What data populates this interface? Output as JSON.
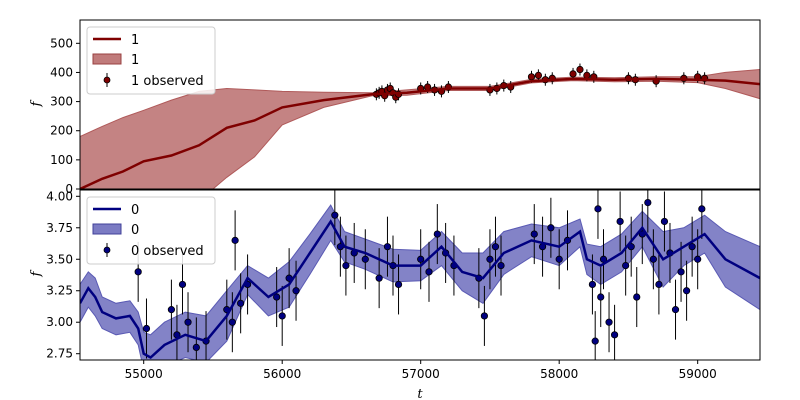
{
  "chart_data": {
    "type": "line",
    "xlabel": "t",
    "xlim": [
      54540,
      59450
    ],
    "xticks": [
      "55000",
      "56000",
      "57000",
      "58000",
      "59000"
    ],
    "panels": [
      {
        "id": "top",
        "ylabel": "f",
        "ylim": [
          0,
          580
        ],
        "yticks": [
          "0",
          "100",
          "200",
          "300",
          "400",
          "500"
        ],
        "line_color": "#7f0000",
        "band_color": "#b05a5a",
        "legend": {
          "line": "1",
          "band": "1",
          "points": "1 observed",
          "position": "upper-left"
        },
        "model": {
          "x": [
            54540,
            54700,
            54850,
            55000,
            55200,
            55400,
            55600,
            55800,
            56000,
            56300,
            56650,
            56900,
            57200,
            57500,
            57800,
            58100,
            58400,
            58700,
            59000,
            59200,
            59450
          ],
          "y": [
            0,
            35,
            60,
            95,
            115,
            150,
            210,
            235,
            280,
            305,
            325,
            330,
            345,
            345,
            370,
            378,
            375,
            378,
            375,
            372,
            360
          ],
          "upper": [
            180,
            215,
            245,
            270,
            305,
            335,
            345,
            340,
            335,
            332,
            330,
            340,
            352,
            352,
            376,
            384,
            382,
            385,
            385,
            400,
            410
          ],
          "lower": [
            -180,
            -150,
            -120,
            -80,
            -70,
            -40,
            40,
            110,
            220,
            280,
            320,
            322,
            338,
            338,
            364,
            372,
            368,
            370,
            365,
            345,
            310
          ]
        },
        "observed": {
          "x": [
            56680,
            56700,
            56720,
            56740,
            56760,
            56780,
            56800,
            56820,
            56840,
            57000,
            57050,
            57100,
            57150,
            57200,
            57500,
            57550,
            57600,
            57650,
            57800,
            57850,
            57900,
            57950,
            58100,
            58150,
            58200,
            58250,
            58500,
            58550,
            58700,
            58900,
            59000,
            59050
          ],
          "y": [
            325,
            330,
            335,
            320,
            340,
            345,
            330,
            315,
            325,
            345,
            350,
            340,
            335,
            350,
            340,
            345,
            355,
            350,
            385,
            390,
            375,
            380,
            395,
            410,
            390,
            385,
            380,
            375,
            370,
            380,
            385,
            380
          ]
        }
      },
      {
        "id": "bottom",
        "ylabel": "f",
        "ylim": [
          2.7,
          4.05
        ],
        "yticks": [
          "2.75",
          "3.00",
          "3.25",
          "3.50",
          "3.75",
          "4.00"
        ],
        "line_color": "#000080",
        "band_color": "#5a5ab4",
        "legend": {
          "line": "0",
          "band": "0",
          "points": "0 observed",
          "position": "upper-left"
        },
        "model": {
          "x": [
            54540,
            54600,
            54650,
            54700,
            54800,
            54900,
            54960,
            55000,
            55050,
            55150,
            55300,
            55450,
            55600,
            55750,
            55900,
            56050,
            56200,
            56350,
            56450,
            56600,
            56800,
            57000,
            57150,
            57300,
            57450,
            57600,
            57800,
            58000,
            58150,
            58200,
            58300,
            58450,
            58600,
            58750,
            58900,
            59050,
            59200,
            59450
          ],
          "y": [
            3.15,
            3.27,
            3.2,
            3.08,
            3.03,
            3.05,
            2.95,
            2.75,
            2.72,
            2.82,
            2.9,
            2.85,
            3.05,
            3.35,
            3.2,
            3.3,
            3.55,
            3.8,
            3.6,
            3.55,
            3.45,
            3.45,
            3.6,
            3.4,
            3.35,
            3.55,
            3.65,
            3.6,
            3.72,
            3.5,
            3.45,
            3.55,
            3.75,
            3.5,
            3.6,
            3.7,
            3.5,
            3.35
          ],
          "upper": [
            3.3,
            3.4,
            3.35,
            3.2,
            3.15,
            3.17,
            3.08,
            2.92,
            2.9,
            3.0,
            3.08,
            3.05,
            3.25,
            3.45,
            3.35,
            3.48,
            3.7,
            3.93,
            3.72,
            3.66,
            3.58,
            3.57,
            3.72,
            3.55,
            3.55,
            3.72,
            3.78,
            3.75,
            3.82,
            3.62,
            3.6,
            3.7,
            3.88,
            3.72,
            3.75,
            3.85,
            3.72,
            3.6
          ],
          "lower": [
            3.0,
            3.12,
            3.05,
            2.95,
            2.9,
            2.92,
            2.82,
            2.62,
            2.6,
            2.65,
            2.72,
            2.68,
            2.85,
            3.22,
            3.05,
            3.12,
            3.38,
            3.65,
            3.48,
            3.42,
            3.32,
            3.33,
            3.45,
            3.25,
            3.15,
            3.38,
            3.52,
            3.45,
            3.6,
            3.38,
            3.3,
            3.4,
            3.6,
            3.28,
            3.45,
            3.55,
            3.28,
            3.1
          ]
        },
        "observed": {
          "x": [
            54960,
            55020,
            55200,
            55240,
            55280,
            55320,
            55380,
            55450,
            55600,
            55640,
            55660,
            55700,
            55750,
            55960,
            56000,
            56050,
            56100,
            56380,
            56420,
            56460,
            56520,
            56600,
            56700,
            56760,
            56800,
            56840,
            57000,
            57060,
            57120,
            57180,
            57240,
            57420,
            57460,
            57500,
            57540,
            57580,
            57820,
            57880,
            57940,
            58000,
            58060,
            58240,
            58260,
            58280,
            58300,
            58320,
            58360,
            58400,
            58440,
            58480,
            58520,
            58560,
            58600,
            58640,
            58680,
            58720,
            58760,
            58800,
            58840,
            58880,
            58920,
            58960,
            59000,
            59030
          ],
          "y": [
            3.4,
            2.95,
            3.1,
            2.9,
            3.3,
            3.0,
            2.8,
            2.85,
            3.1,
            3.0,
            3.65,
            3.15,
            3.3,
            3.2,
            3.05,
            3.35,
            3.25,
            3.85,
            3.6,
            3.45,
            3.55,
            3.5,
            3.35,
            3.6,
            3.45,
            3.3,
            3.5,
            3.4,
            3.7,
            3.55,
            3.45,
            3.35,
            3.05,
            3.5,
            3.6,
            3.45,
            3.7,
            3.6,
            3.75,
            3.5,
            3.65,
            3.3,
            2.85,
            3.9,
            3.2,
            3.5,
            3.0,
            2.9,
            3.8,
            3.45,
            3.6,
            3.2,
            3.7,
            3.95,
            3.5,
            3.3,
            3.8,
            3.55,
            3.1,
            3.4,
            3.25,
            3.6,
            3.5,
            3.9
          ]
        }
      }
    ]
  }
}
